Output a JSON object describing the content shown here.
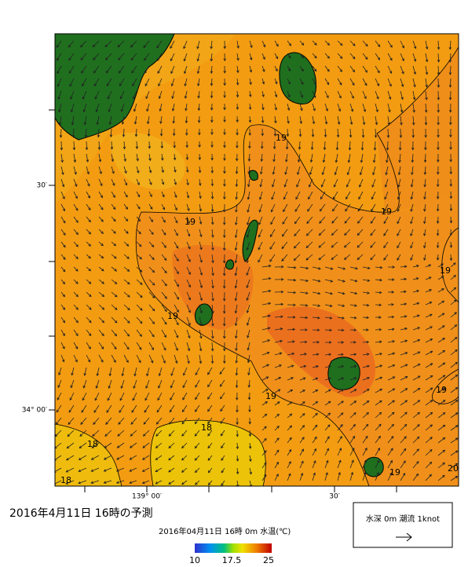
{
  "map": {
    "lat_labels": [
      "30′",
      "34° 00′"
    ],
    "lon_labels": [
      "139° 00′",
      "30′"
    ],
    "contour_labels": [
      "19",
      "19",
      "19",
      "19",
      "19",
      "19",
      "19",
      "18",
      "18",
      "18",
      "19",
      "20"
    ]
  },
  "caption": "2016年4月11日 16時の予測",
  "colorbar": {
    "title": "2016年04月11日 16時 0m 水温(℃)",
    "ticks": [
      10,
      17.5,
      25
    ]
  },
  "current_box": {
    "label": "水深 0m 潮流 1knot"
  }
}
